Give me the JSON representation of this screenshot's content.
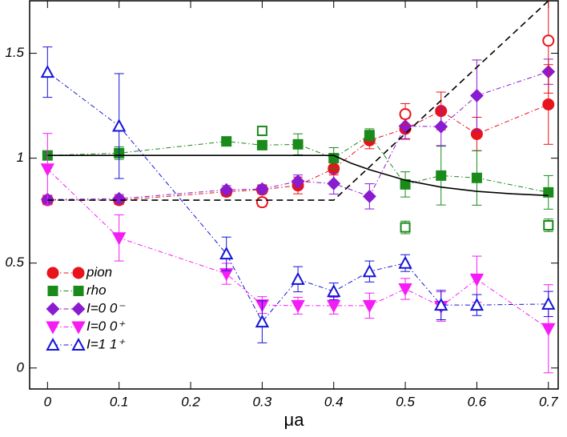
{
  "chart_data": {
    "type": "line",
    "x_label": "μa",
    "xlim": [
      -0.025,
      0.7137
    ],
    "ylim": [
      -0.1,
      1.75
    ],
    "xticks": [
      0,
      0.1,
      0.2,
      0.3,
      0.4,
      0.5,
      0.6,
      0.7
    ],
    "yticks": [
      0,
      0.5,
      1,
      1.5
    ],
    "legend": "lower left",
    "series": [
      {
        "name": "pion",
        "color": "#e8131b",
        "marker": "circle",
        "filled": true,
        "linestyle": "dashdot",
        "x": [
          0,
          0.1,
          0.25,
          0.3,
          0.35,
          0.4,
          0.45,
          0.5,
          0.55,
          0.6,
          0.7
        ],
        "values": [
          0.8,
          0.8,
          0.84,
          0.85,
          0.87,
          0.95,
          1.085,
          1.14,
          1.225,
          1.115,
          1.256
        ],
        "errors": [
          0.02,
          0.02,
          0.02,
          0.02,
          0.04,
          0.03,
          0.04,
          0.05,
          0.09,
          0.08,
          0.19
        ]
      },
      {
        "name": "rho",
        "color": "#1a8a1a",
        "marker": "square",
        "filled": true,
        "linestyle": "dashdot",
        "x": [
          0,
          0.1,
          0.25,
          0.3,
          0.35,
          0.4,
          0.45,
          0.5,
          0.55,
          0.6,
          0.7
        ],
        "values": [
          1.013,
          1.024,
          1.08,
          1.062,
          1.066,
          1.0,
          1.11,
          0.875,
          0.917,
          0.906,
          0.837
        ],
        "errors": [
          0.02,
          0.03,
          0.02,
          0.02,
          0.05,
          0.05,
          0.03,
          0.06,
          0.14,
          0.13,
          0.08
        ]
      },
      {
        "name": "I=0 0⁻",
        "color": "#8a1bd1",
        "marker": "diamond",
        "filled": true,
        "linestyle": "dashdot",
        "x": [
          0,
          0.1,
          0.25,
          0.3,
          0.35,
          0.4,
          0.45,
          0.5,
          0.55,
          0.6,
          0.7
        ],
        "values": [
          0.803,
          0.807,
          0.849,
          0.853,
          0.89,
          0.879,
          0.818,
          1.153,
          1.15,
          1.298,
          1.412
        ],
        "errors": [
          0.02,
          0.02,
          0.02,
          0.02,
          0.03,
          0.05,
          0.06,
          0.06,
          0.09,
          0.17,
          0.06
        ]
      },
      {
        "name": "I=0 0⁺",
        "color": "#f51df5",
        "marker": "triangle-down",
        "filled": true,
        "linestyle": "dashdot",
        "x": [
          0,
          0.1,
          0.25,
          0.3,
          0.35,
          0.4,
          0.45,
          0.5,
          0.55,
          0.6,
          0.7
        ],
        "values": [
          0.948,
          0.62,
          0.449,
          0.3,
          0.297,
          0.297,
          0.297,
          0.377,
          0.293,
          0.423,
          0.187
        ],
        "errors": [
          0.17,
          0.11,
          0.05,
          0.04,
          0.04,
          0.04,
          0.06,
          0.05,
          0.07,
          0.11,
          0.21
        ]
      },
      {
        "name": "I=1 1⁺",
        "color": "#1515d8",
        "marker": "triangle-up",
        "filled": false,
        "linestyle": "dashdot",
        "x": [
          0,
          0.1,
          0.25,
          0.3,
          0.35,
          0.4,
          0.45,
          0.5,
          0.55,
          0.6,
          0.7
        ],
        "values": [
          1.41,
          1.153,
          0.544,
          0.22,
          0.423,
          0.365,
          0.46,
          0.5,
          0.3,
          0.3,
          0.305
        ],
        "errors": [
          0.12,
          0.25,
          0.08,
          0.1,
          0.06,
          0.04,
          0.05,
          0.04,
          0.07,
          0.05,
          0.06
        ]
      },
      {
        "color": "#e8131b",
        "marker": "circle",
        "filled": false,
        "linestyle": "none",
        "x": [
          0.3,
          0.5,
          0.7
        ],
        "values": [
          0.79,
          1.21,
          1.56
        ],
        "errors": [
          0.02,
          0.05,
          0.25
        ]
      },
      {
        "color": "#1a8a1a",
        "marker": "square",
        "filled": false,
        "linestyle": "none",
        "x": [
          0.3,
          0.5,
          0.7
        ],
        "values": [
          1.13,
          0.67,
          0.68
        ],
        "errors": [
          0.02,
          0.03,
          0.03
        ]
      },
      {
        "color": "#000000",
        "marker": "none",
        "linestyle": "solid",
        "x": [
          0,
          0.4,
          0.425,
          0.45,
          0.5,
          0.55,
          0.6,
          0.65,
          0.7
        ],
        "values": [
          1.013,
          1.013,
          0.975,
          0.945,
          0.895,
          0.862,
          0.842,
          0.83,
          0.822
        ]
      },
      {
        "color": "#000000",
        "marker": "none",
        "linestyle": "dashed",
        "x": [
          0,
          0.4,
          0.7
        ],
        "values": [
          0.8,
          0.8,
          1.75
        ]
      }
    ]
  }
}
